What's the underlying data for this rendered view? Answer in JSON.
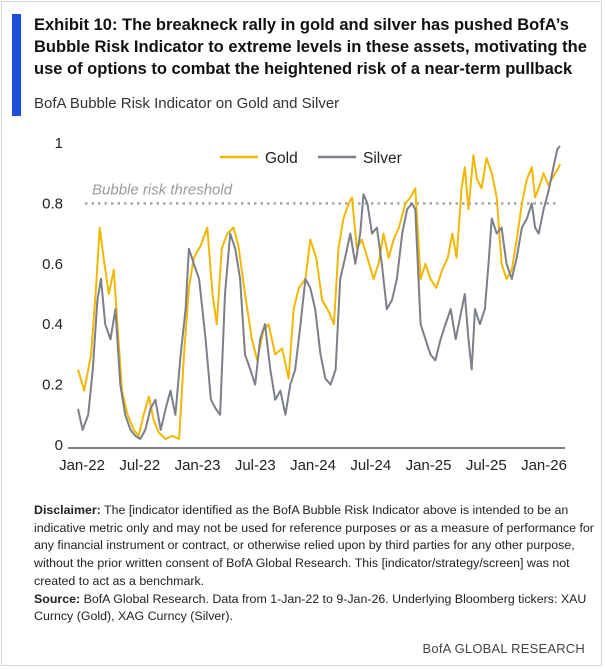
{
  "header": {
    "title": "Exhibit 10: The breakneck rally in gold and silver has pushed BofA’s Bubble Risk Indicator to extreme levels in these assets, motivating the use of options to combat the heightened risk of a near-term pullback",
    "subtitle": "BofA Bubble Risk Indicator on Gold and Silver"
  },
  "chart_data": {
    "type": "line",
    "x_tick_labels": [
      "Jan-22",
      "Jul-22",
      "Jan-23",
      "Jul-23",
      "Jan-24",
      "Jul-24",
      "Jan-25",
      "Jul-25",
      "Jan-26"
    ],
    "y_tick_labels": [
      "0",
      "0.2",
      "0.4",
      "0.6",
      "0.8",
      "1"
    ],
    "ylim": [
      0,
      1
    ],
    "x_range": [
      "2022-01-01",
      "2026-01-09"
    ],
    "legend_position": "top-center",
    "threshold": {
      "label": "Bubble risk threshold",
      "value": 0.8
    },
    "series": [
      {
        "name": "Gold",
        "color": "#f2b705",
        "points": [
          [
            "2022-01-01",
            0.25
          ],
          [
            "2022-01-20",
            0.18
          ],
          [
            "2022-02-10",
            0.3
          ],
          [
            "2022-02-25",
            0.52
          ],
          [
            "2022-03-08",
            0.72
          ],
          [
            "2022-03-20",
            0.62
          ],
          [
            "2022-04-05",
            0.5
          ],
          [
            "2022-04-20",
            0.58
          ],
          [
            "2022-05-01",
            0.4
          ],
          [
            "2022-05-15",
            0.18
          ],
          [
            "2022-06-01",
            0.1
          ],
          [
            "2022-06-20",
            0.05
          ],
          [
            "2022-07-05",
            0.03
          ],
          [
            "2022-07-20",
            0.1
          ],
          [
            "2022-08-05",
            0.16
          ],
          [
            "2022-08-20",
            0.08
          ],
          [
            "2022-09-05",
            0.04
          ],
          [
            "2022-09-25",
            0.02
          ],
          [
            "2022-10-15",
            0.03
          ],
          [
            "2022-11-05",
            0.02
          ],
          [
            "2022-11-20",
            0.3
          ],
          [
            "2022-12-05",
            0.52
          ],
          [
            "2022-12-20",
            0.62
          ],
          [
            "2023-01-10",
            0.66
          ],
          [
            "2023-01-30",
            0.72
          ],
          [
            "2023-02-15",
            0.5
          ],
          [
            "2023-02-28",
            0.4
          ],
          [
            "2023-03-15",
            0.65
          ],
          [
            "2023-04-01",
            0.7
          ],
          [
            "2023-04-20",
            0.72
          ],
          [
            "2023-05-05",
            0.66
          ],
          [
            "2023-05-25",
            0.5
          ],
          [
            "2023-06-15",
            0.35
          ],
          [
            "2023-07-01",
            0.28
          ],
          [
            "2023-07-20",
            0.38
          ],
          [
            "2023-08-05",
            0.4
          ],
          [
            "2023-08-25",
            0.3
          ],
          [
            "2023-09-15",
            0.32
          ],
          [
            "2023-10-05",
            0.22
          ],
          [
            "2023-10-20",
            0.45
          ],
          [
            "2023-11-05",
            0.52
          ],
          [
            "2023-11-25",
            0.55
          ],
          [
            "2023-12-10",
            0.68
          ],
          [
            "2023-12-28",
            0.62
          ],
          [
            "2024-01-15",
            0.48
          ],
          [
            "2024-02-05",
            0.44
          ],
          [
            "2024-02-20",
            0.4
          ],
          [
            "2024-03-05",
            0.65
          ],
          [
            "2024-03-20",
            0.75
          ],
          [
            "2024-04-05",
            0.8
          ],
          [
            "2024-04-15",
            0.82
          ],
          [
            "2024-04-30",
            0.65
          ],
          [
            "2024-05-15",
            0.68
          ],
          [
            "2024-06-01",
            0.62
          ],
          [
            "2024-06-20",
            0.55
          ],
          [
            "2024-07-05",
            0.6
          ],
          [
            "2024-07-20",
            0.7
          ],
          [
            "2024-08-05",
            0.62
          ],
          [
            "2024-08-20",
            0.68
          ],
          [
            "2024-09-05",
            0.72
          ],
          [
            "2024-09-25",
            0.8
          ],
          [
            "2024-10-10",
            0.82
          ],
          [
            "2024-10-25",
            0.85
          ],
          [
            "2024-11-10",
            0.55
          ],
          [
            "2024-11-25",
            0.6
          ],
          [
            "2024-12-10",
            0.55
          ],
          [
            "2024-12-28",
            0.52
          ],
          [
            "2025-01-15",
            0.58
          ],
          [
            "2025-02-01",
            0.62
          ],
          [
            "2025-02-15",
            0.7
          ],
          [
            "2025-02-28",
            0.62
          ],
          [
            "2025-03-15",
            0.85
          ],
          [
            "2025-03-25",
            0.92
          ],
          [
            "2025-04-05",
            0.78
          ],
          [
            "2025-04-20",
            0.96
          ],
          [
            "2025-05-01",
            0.88
          ],
          [
            "2025-05-15",
            0.85
          ],
          [
            "2025-05-30",
            0.95
          ],
          [
            "2025-06-15",
            0.9
          ],
          [
            "2025-06-30",
            0.82
          ],
          [
            "2025-07-15",
            0.6
          ],
          [
            "2025-07-30",
            0.55
          ],
          [
            "2025-08-15",
            0.58
          ],
          [
            "2025-08-30",
            0.68
          ],
          [
            "2025-09-15",
            0.8
          ],
          [
            "2025-09-30",
            0.88
          ],
          [
            "2025-10-15",
            0.92
          ],
          [
            "2025-10-25",
            0.82
          ],
          [
            "2025-11-05",
            0.85
          ],
          [
            "2025-11-20",
            0.9
          ],
          [
            "2025-12-05",
            0.86
          ],
          [
            "2025-12-20",
            0.89
          ],
          [
            "2026-01-05",
            0.92
          ],
          [
            "2026-01-09",
            0.93
          ]
        ]
      },
      {
        "name": "Silver",
        "color": "#7b7f88",
        "points": [
          [
            "2022-01-01",
            0.12
          ],
          [
            "2022-01-15",
            0.05
          ],
          [
            "2022-02-01",
            0.1
          ],
          [
            "2022-02-15",
            0.25
          ],
          [
            "2022-03-01",
            0.48
          ],
          [
            "2022-03-12",
            0.55
          ],
          [
            "2022-03-25",
            0.4
          ],
          [
            "2022-04-10",
            0.35
          ],
          [
            "2022-04-25",
            0.45
          ],
          [
            "2022-05-10",
            0.2
          ],
          [
            "2022-05-25",
            0.1
          ],
          [
            "2022-06-10",
            0.05
          ],
          [
            "2022-06-25",
            0.03
          ],
          [
            "2022-07-10",
            0.02
          ],
          [
            "2022-07-25",
            0.05
          ],
          [
            "2022-08-10",
            0.12
          ],
          [
            "2022-08-25",
            0.15
          ],
          [
            "2022-09-10",
            0.05
          ],
          [
            "2022-09-25",
            0.12
          ],
          [
            "2022-10-10",
            0.18
          ],
          [
            "2022-10-25",
            0.1
          ],
          [
            "2022-11-10",
            0.3
          ],
          [
            "2022-11-25",
            0.45
          ],
          [
            "2022-12-05",
            0.65
          ],
          [
            "2022-12-20",
            0.6
          ],
          [
            "2023-01-05",
            0.55
          ],
          [
            "2023-01-25",
            0.35
          ],
          [
            "2023-02-10",
            0.15
          ],
          [
            "2023-02-25",
            0.12
          ],
          [
            "2023-03-10",
            0.1
          ],
          [
            "2023-03-25",
            0.5
          ],
          [
            "2023-04-10",
            0.7
          ],
          [
            "2023-04-25",
            0.65
          ],
          [
            "2023-05-10",
            0.55
          ],
          [
            "2023-05-25",
            0.3
          ],
          [
            "2023-06-10",
            0.25
          ],
          [
            "2023-06-25",
            0.2
          ],
          [
            "2023-07-10",
            0.35
          ],
          [
            "2023-07-25",
            0.4
          ],
          [
            "2023-08-10",
            0.25
          ],
          [
            "2023-08-25",
            0.15
          ],
          [
            "2023-09-10",
            0.18
          ],
          [
            "2023-09-25",
            0.1
          ],
          [
            "2023-10-10",
            0.2
          ],
          [
            "2023-10-25",
            0.25
          ],
          [
            "2023-11-10",
            0.4
          ],
          [
            "2023-11-25",
            0.55
          ],
          [
            "2023-12-10",
            0.52
          ],
          [
            "2023-12-25",
            0.45
          ],
          [
            "2024-01-10",
            0.3
          ],
          [
            "2024-01-25",
            0.22
          ],
          [
            "2024-02-10",
            0.2
          ],
          [
            "2024-02-25",
            0.25
          ],
          [
            "2024-03-10",
            0.55
          ],
          [
            "2024-03-25",
            0.62
          ],
          [
            "2024-04-10",
            0.7
          ],
          [
            "2024-04-25",
            0.6
          ],
          [
            "2024-05-10",
            0.7
          ],
          [
            "2024-05-20",
            0.83
          ],
          [
            "2024-06-01",
            0.8
          ],
          [
            "2024-06-15",
            0.7
          ],
          [
            "2024-06-30",
            0.72
          ],
          [
            "2024-07-15",
            0.6
          ],
          [
            "2024-07-30",
            0.45
          ],
          [
            "2024-08-15",
            0.48
          ],
          [
            "2024-08-30",
            0.55
          ],
          [
            "2024-09-15",
            0.7
          ],
          [
            "2024-09-30",
            0.78
          ],
          [
            "2024-10-15",
            0.8
          ],
          [
            "2024-10-25",
            0.78
          ],
          [
            "2024-11-10",
            0.4
          ],
          [
            "2024-11-25",
            0.35
          ],
          [
            "2024-12-10",
            0.3
          ],
          [
            "2024-12-25",
            0.28
          ],
          [
            "2025-01-10",
            0.35
          ],
          [
            "2025-01-25",
            0.4
          ],
          [
            "2025-02-10",
            0.45
          ],
          [
            "2025-02-25",
            0.35
          ],
          [
            "2025-03-10",
            0.42
          ],
          [
            "2025-03-25",
            0.5
          ],
          [
            "2025-04-05",
            0.35
          ],
          [
            "2025-04-15",
            0.25
          ],
          [
            "2025-04-25",
            0.45
          ],
          [
            "2025-05-10",
            0.4
          ],
          [
            "2025-05-25",
            0.45
          ],
          [
            "2025-06-05",
            0.6
          ],
          [
            "2025-06-15",
            0.75
          ],
          [
            "2025-06-30",
            0.7
          ],
          [
            "2025-07-15",
            0.72
          ],
          [
            "2025-07-30",
            0.6
          ],
          [
            "2025-08-15",
            0.55
          ],
          [
            "2025-08-30",
            0.62
          ],
          [
            "2025-09-15",
            0.72
          ],
          [
            "2025-09-30",
            0.75
          ],
          [
            "2025-10-15",
            0.8
          ],
          [
            "2025-10-25",
            0.72
          ],
          [
            "2025-11-05",
            0.7
          ],
          [
            "2025-11-20",
            0.78
          ],
          [
            "2025-12-05",
            0.84
          ],
          [
            "2025-12-20",
            0.92
          ],
          [
            "2026-01-01",
            0.98
          ],
          [
            "2026-01-09",
            0.99
          ]
        ]
      }
    ]
  },
  "footer": {
    "disclaimer_label": "Disclaimer:",
    "disclaimer_text": " The [indicator identified as the BofA Bubble Risk Indicator above is intended to be an indicative metric only and may not be used for reference purposes or as a measure of performance for any financial instrument or contract, or otherwise relied upon by third parties for any other purpose, without the prior written consent of BofA Global Research. This [indicator/strategy/screen] was not created to act as a benchmark.",
    "source_label": "Source:",
    "source_text": " BofA Global Research. Data from 1-Jan-22 to 9-Jan-26. Underlying Bloomberg tickers: XAU Curncy (Gold), XAG Curncy (Silver).",
    "brand": "BofA GLOBAL RESEARCH"
  }
}
